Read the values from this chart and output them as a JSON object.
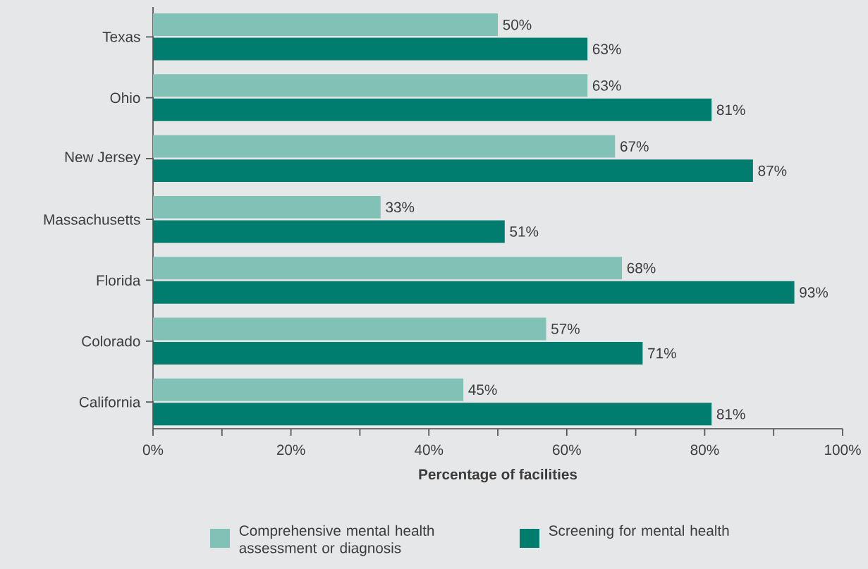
{
  "chart_data": {
    "type": "bar",
    "orientation": "horizontal",
    "xlabel": "Percentage of facilities",
    "categories": [
      "Texas",
      "Ohio",
      "New Jersey",
      "Massachusetts",
      "Florida",
      "Colorado",
      "California"
    ],
    "series": [
      {
        "name": "Comprehensive mental health assessment or diagnosis",
        "color": "#82c1b6",
        "values": [
          50,
          63,
          67,
          33,
          68,
          57,
          45
        ],
        "value_labels": [
          "50%",
          "63%",
          "67%",
          "33%",
          "68%",
          "57%",
          "45%"
        ]
      },
      {
        "name": "Screening for mental health",
        "color": "#007d6e",
        "values": [
          63,
          81,
          87,
          51,
          93,
          71,
          81
        ],
        "value_labels": [
          "63%",
          "81%",
          "87%",
          "51%",
          "93%",
          "71%",
          "81%"
        ]
      }
    ],
    "xlim": [
      0,
      100
    ],
    "xticks": [
      {
        "value": 0,
        "label": "0%"
      },
      {
        "value": 10,
        "label": null
      },
      {
        "value": 20,
        "label": "20%"
      },
      {
        "value": 30,
        "label": null
      },
      {
        "value": 40,
        "label": "40%"
      },
      {
        "value": 50,
        "label": null
      },
      {
        "value": 60,
        "label": "60%"
      },
      {
        "value": 70,
        "label": null
      },
      {
        "value": 80,
        "label": "80%"
      },
      {
        "value": 90,
        "label": null
      },
      {
        "value": 100,
        "label": "100%"
      }
    ],
    "legend": "bottom"
  }
}
